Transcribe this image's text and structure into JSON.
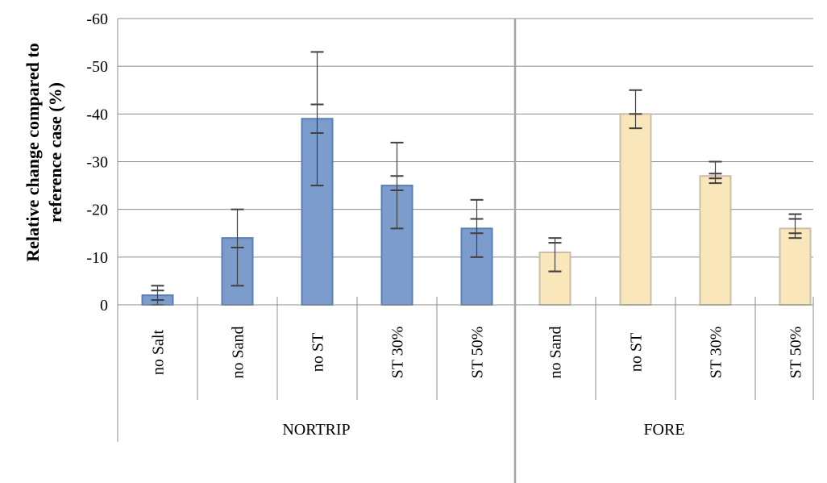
{
  "chart_data": {
    "type": "bar",
    "title": "",
    "ylabel_line1": "Relative change compared to",
    "ylabel_line2": "reference case (%)",
    "ylim": [
      0,
      -60
    ],
    "y_ticks": [
      "0",
      "-10",
      "-20",
      "-30",
      "-40",
      "-50",
      "-60"
    ],
    "y_tick_values": [
      0,
      -10,
      -20,
      -30,
      -40,
      -50,
      -60
    ],
    "grid": true,
    "legend": "none",
    "groups": [
      {
        "name": "NORTRIP",
        "color": "#7b9ccc",
        "border": "#5a7fb5",
        "bars": [
          {
            "category": "no Salt",
            "value": -2,
            "err_outer": [
              0,
              -4
            ],
            "err_inner": [
              -1,
              -3
            ]
          },
          {
            "category": "no Sand",
            "value": -14,
            "err_outer": [
              -4,
              -20
            ],
            "err_inner": [
              -12,
              -12
            ]
          },
          {
            "category": "no ST",
            "value": -39,
            "err_outer": [
              -25,
              -53
            ],
            "err_inner": [
              -36,
              -42
            ]
          },
          {
            "category": "ST 30%",
            "value": -25,
            "err_outer": [
              -16,
              -34
            ],
            "err_inner": [
              -24,
              -27
            ]
          },
          {
            "category": "ST 50%",
            "value": -16,
            "err_outer": [
              -10,
              -22
            ],
            "err_inner": [
              -15,
              -18
            ]
          }
        ]
      },
      {
        "name": "FORE",
        "color": "#fae6bb",
        "border": "#c8bfa8",
        "bars": [
          {
            "category": "no Sand",
            "value": -11,
            "err_outer": [
              -7,
              -14
            ],
            "err_inner": [
              -7,
              -13
            ]
          },
          {
            "category": "no ST",
            "value": -40,
            "err_outer": [
              -37,
              -45
            ],
            "err_inner": [
              -37,
              -40
            ]
          },
          {
            "category": "ST 30%",
            "value": -27,
            "err_outer": [
              -25.5,
              -30
            ],
            "err_inner": [
              -26.5,
              -27.5
            ]
          },
          {
            "category": "ST 50%",
            "value": -16,
            "err_outer": [
              -14,
              -19
            ],
            "err_inner": [
              -15,
              -18
            ]
          }
        ]
      }
    ]
  }
}
